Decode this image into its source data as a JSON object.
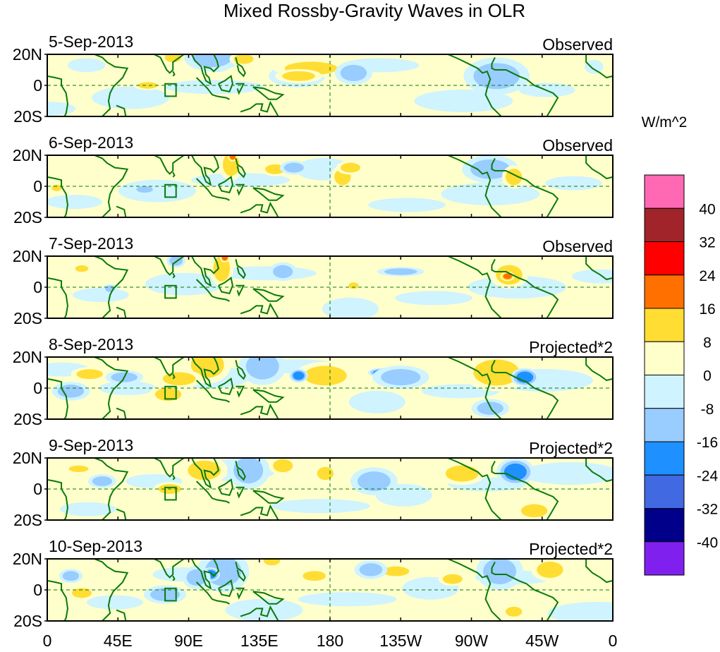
{
  "chart_data": {
    "type": "heatmap",
    "title": "Mixed Rossby-Gravity Waves in OLR",
    "colorbar": {
      "units": "W/m^2",
      "levels": [
        40,
        32,
        24,
        16,
        8,
        0,
        -8,
        -16,
        -24,
        -32,
        -40
      ],
      "level_labels": [
        "40",
        "32",
        "24",
        "16",
        "8",
        "0",
        "-8",
        "-16",
        "-24",
        "-32",
        "-40"
      ],
      "colors": [
        "#ff69b4",
        "#a0242a",
        "#ff0000",
        "#ff7000",
        "#ffdd33",
        "#ffffcc",
        "#cff3ff",
        "#99ccff",
        "#1e90ff",
        "#4169e1",
        "#00008b",
        "#8020ef"
      ]
    },
    "xaxis": {
      "range_deg_east": [
        0,
        360
      ],
      "tick_labels": [
        "0",
        "45E",
        "90E",
        "135E",
        "180",
        "135W",
        "90W",
        "45W",
        "0"
      ],
      "ticks_deg_east": [
        0,
        45,
        90,
        135,
        180,
        225,
        270,
        315,
        360
      ]
    },
    "yaxis": {
      "range_deg": [
        -20,
        20
      ],
      "tick_labels": [
        "20N",
        "0",
        "20S"
      ],
      "ticks_deg": [
        20,
        0,
        -20
      ]
    },
    "overlays": {
      "coastline_color": "#0a7a0a",
      "equator_dashed": true,
      "dateline_dashed": true,
      "box_region": {
        "lon": [
          75,
          82
        ],
        "lat": [
          -7,
          1
        ]
      }
    },
    "panels": [
      {
        "date": "5-Sep-2013",
        "type": "Observed",
        "anomalies": [
          {
            "lon": 168,
            "lat": 11,
            "value": 14,
            "sx": 16,
            "sy": 4
          },
          {
            "lon": 160,
            "lat": 6,
            "value": 10,
            "sx": 10,
            "sy": 3
          },
          {
            "lon": 108,
            "lat": 16,
            "value": -17,
            "sx": 7,
            "sy": 5
          },
          {
            "lon": 105,
            "lat": 18,
            "value": -9,
            "sx": 12,
            "sy": 6
          },
          {
            "lon": 281,
            "lat": 9,
            "value": -19,
            "sx": 9,
            "sy": 5
          },
          {
            "lon": 286,
            "lat": 6,
            "value": -10,
            "sx": 14,
            "sy": 8
          },
          {
            "lon": 64,
            "lat": 0,
            "value": 9,
            "sx": 6,
            "sy": 2
          },
          {
            "lon": 80,
            "lat": 18,
            "value": 9,
            "sx": 5,
            "sy": 3
          },
          {
            "lon": 125,
            "lat": 17,
            "value": 9,
            "sx": 6,
            "sy": 3
          },
          {
            "lon": 195,
            "lat": 8,
            "value": -9,
            "sx": 8,
            "sy": 5
          },
          {
            "lon": 25,
            "lat": 13,
            "value": -8,
            "sx": 8,
            "sy": 3
          },
          {
            "lon": 348,
            "lat": 12,
            "value": -8,
            "sx": 4,
            "sy": 3
          }
        ]
      },
      {
        "date": "6-Sep-2013",
        "type": "Observed",
        "anomalies": [
          {
            "lon": 117,
            "lat": 14,
            "value": 12,
            "sx": 5,
            "sy": 7
          },
          {
            "lon": 118,
            "lat": 19,
            "value": 17,
            "sx": 2,
            "sy": 2
          },
          {
            "lon": 145,
            "lat": 11,
            "value": 9,
            "sx": 6,
            "sy": 3
          },
          {
            "lon": 188,
            "lat": 6,
            "value": 9,
            "sx": 5,
            "sy": 5
          },
          {
            "lon": 193,
            "lat": 12,
            "value": 9,
            "sx": 6,
            "sy": 3
          },
          {
            "lon": 283,
            "lat": 10,
            "value": -17,
            "sx": 6,
            "sy": 4
          },
          {
            "lon": 282,
            "lat": 11,
            "value": -10,
            "sx": 12,
            "sy": 6
          },
          {
            "lon": 297,
            "lat": 6,
            "value": 9,
            "sx": 5,
            "sy": 5
          },
          {
            "lon": 157,
            "lat": 12,
            "value": -9,
            "sx": 6,
            "sy": 3
          },
          {
            "lon": 62,
            "lat": -2,
            "value": -9,
            "sx": 5,
            "sy": 2
          },
          {
            "lon": 6,
            "lat": -1,
            "value": 9,
            "sx": 3,
            "sy": 2
          }
        ]
      },
      {
        "date": "7-Sep-2013",
        "type": "Observed",
        "anomalies": [
          {
            "lon": 111,
            "lat": 12,
            "value": 12,
            "sx": 5,
            "sy": 8
          },
          {
            "lon": 113,
            "lat": 19,
            "value": 18,
            "sx": 2,
            "sy": 2
          },
          {
            "lon": 294,
            "lat": 8,
            "value": 13,
            "sx": 8,
            "sy": 6
          },
          {
            "lon": 293,
            "lat": 7,
            "value": 18,
            "sx": 3,
            "sy": 2
          },
          {
            "lon": 150,
            "lat": 10,
            "value": -9,
            "sx": 6,
            "sy": 4
          },
          {
            "lon": 195,
            "lat": 1,
            "value": 9,
            "sx": 3,
            "sy": 2
          },
          {
            "lon": 225,
            "lat": 10,
            "value": -9,
            "sx": 10,
            "sy": 2
          },
          {
            "lon": 22,
            "lat": 12,
            "value": 9,
            "sx": 4,
            "sy": 2
          },
          {
            "lon": 40,
            "lat": -1,
            "value": -9,
            "sx": 3,
            "sy": 2
          },
          {
            "lon": 82,
            "lat": 17,
            "value": -9,
            "sx": 4,
            "sy": 3
          }
        ]
      },
      {
        "date": "8-Sep-2013",
        "type": "Projected*2",
        "anomalies": [
          {
            "lon": 103,
            "lat": 18,
            "value": 30,
            "sx": 6,
            "sy": 5
          },
          {
            "lon": 102,
            "lat": 15,
            "value": 14,
            "sx": 10,
            "sy": 8
          },
          {
            "lon": 136,
            "lat": 17,
            "value": -22,
            "sx": 6,
            "sy": 4
          },
          {
            "lon": 137,
            "lat": 14,
            "value": -10,
            "sx": 10,
            "sy": 8
          },
          {
            "lon": 77,
            "lat": -4,
            "value": 16,
            "sx": 8,
            "sy": 4
          },
          {
            "lon": 84,
            "lat": 6,
            "value": 14,
            "sx": 10,
            "sy": 4
          },
          {
            "lon": 283,
            "lat": 9,
            "value": 30,
            "sx": 8,
            "sy": 5
          },
          {
            "lon": 286,
            "lat": 10,
            "value": 15,
            "sx": 14,
            "sy": 8
          },
          {
            "lon": 304,
            "lat": 7,
            "value": -18,
            "sx": 6,
            "sy": 4
          },
          {
            "lon": 172,
            "lat": 10,
            "value": 16,
            "sx": 7,
            "sy": 3
          },
          {
            "lon": 177,
            "lat": 8,
            "value": 10,
            "sx": 13,
            "sy": 6
          },
          {
            "lon": 213,
            "lat": 10,
            "value": -18,
            "sx": 6,
            "sy": 2
          },
          {
            "lon": 225,
            "lat": 7,
            "value": -9,
            "sx": 12,
            "sy": 5
          },
          {
            "lon": 160,
            "lat": 8,
            "value": -18,
            "sx": 4,
            "sy": 3
          },
          {
            "lon": 27,
            "lat": 9,
            "value": 9,
            "sx": 8,
            "sy": 3
          },
          {
            "lon": 15,
            "lat": -2,
            "value": -9,
            "sx": 8,
            "sy": 4
          },
          {
            "lon": 49,
            "lat": 7,
            "value": -9,
            "sx": 8,
            "sy": 3
          },
          {
            "lon": 282,
            "lat": -13,
            "value": -9,
            "sx": 8,
            "sy": 4
          }
        ]
      },
      {
        "date": "9-Sep-2013",
        "type": "Projected*2",
        "anomalies": [
          {
            "lon": 98,
            "lat": 14,
            "value": 17,
            "sx": 6,
            "sy": 4
          },
          {
            "lon": 100,
            "lat": 12,
            "value": 10,
            "sx": 10,
            "sy": 6
          },
          {
            "lon": 130,
            "lat": 13,
            "value": -19,
            "sx": 6,
            "sy": 5
          },
          {
            "lon": 128,
            "lat": 12,
            "value": -10,
            "sx": 9,
            "sy": 8
          },
          {
            "lon": 177,
            "lat": 10,
            "value": 12,
            "sx": 5,
            "sy": 4
          },
          {
            "lon": 295,
            "lat": 9,
            "value": -26,
            "sx": 5,
            "sy": 3
          },
          {
            "lon": 298,
            "lat": 11,
            "value": -18,
            "sx": 8,
            "sy": 6
          },
          {
            "lon": 265,
            "lat": 9,
            "value": 18,
            "sx": 5,
            "sy": 3
          },
          {
            "lon": 264,
            "lat": 10,
            "value": 11,
            "sx": 10,
            "sy": 5
          },
          {
            "lon": 208,
            "lat": 5,
            "value": -10,
            "sx": 10,
            "sy": 6
          },
          {
            "lon": 78,
            "lat": 0,
            "value": 9,
            "sx": 7,
            "sy": 3
          },
          {
            "lon": 150,
            "lat": 15,
            "value": 9,
            "sx": 6,
            "sy": 4
          },
          {
            "lon": 310,
            "lat": -14,
            "value": 10,
            "sx": 8,
            "sy": 4
          },
          {
            "lon": 20,
            "lat": 13,
            "value": 9,
            "sx": 6,
            "sy": 2
          },
          {
            "lon": 35,
            "lat": 5,
            "value": -9,
            "sx": 6,
            "sy": 3
          }
        ]
      },
      {
        "date": "10-Sep-2013",
        "type": "Projected*2",
        "anomalies": [
          {
            "lon": 117,
            "lat": 16,
            "value": -22,
            "sx": 7,
            "sy": 4
          },
          {
            "lon": 112,
            "lat": 12,
            "value": -11,
            "sx": 11,
            "sy": 9
          },
          {
            "lon": 104,
            "lat": 10,
            "value": -17,
            "sx": 4,
            "sy": 3
          },
          {
            "lon": 143,
            "lat": 19,
            "value": 15,
            "sx": 5,
            "sy": 3
          },
          {
            "lon": 170,
            "lat": 9,
            "value": 10,
            "sx": 7,
            "sy": 3
          },
          {
            "lon": 287,
            "lat": 10,
            "value": -18,
            "sx": 6,
            "sy": 4
          },
          {
            "lon": 288,
            "lat": 12,
            "value": -10,
            "sx": 10,
            "sy": 8
          },
          {
            "lon": 320,
            "lat": 13,
            "value": 11,
            "sx": 8,
            "sy": 5
          },
          {
            "lon": 258,
            "lat": 7,
            "value": 10,
            "sx": 6,
            "sy": 3
          },
          {
            "lon": 222,
            "lat": 12,
            "value": 10,
            "sx": 8,
            "sy": 3
          },
          {
            "lon": 206,
            "lat": 13,
            "value": -9,
            "sx": 7,
            "sy": 4
          },
          {
            "lon": 22,
            "lat": -2,
            "value": 9,
            "sx": 6,
            "sy": 3
          },
          {
            "lon": 75,
            "lat": -3,
            "value": -10,
            "sx": 9,
            "sy": 4
          },
          {
            "lon": 95,
            "lat": 8,
            "value": -9,
            "sx": 6,
            "sy": 5
          },
          {
            "lon": 297,
            "lat": -14,
            "value": 9,
            "sx": 5,
            "sy": 3
          },
          {
            "lon": 15,
            "lat": 9,
            "value": -9,
            "sx": 5,
            "sy": 3
          }
        ]
      }
    ]
  }
}
